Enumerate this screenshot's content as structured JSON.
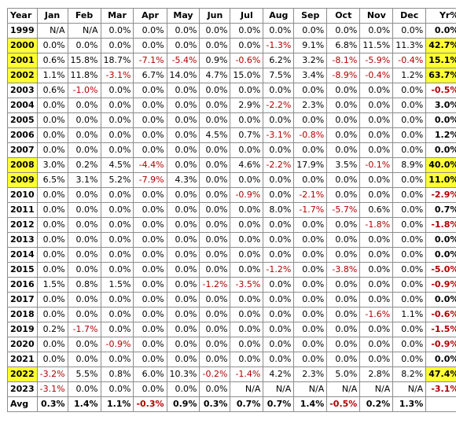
{
  "table": {
    "headers": [
      "Year",
      "Jan",
      "Feb",
      "Mar",
      "Apr",
      "May",
      "Jun",
      "Jul",
      "Aug",
      "Sep",
      "Oct",
      "Nov",
      "Dec",
      "Yr%"
    ],
    "highlight_color": "#ffff33",
    "negative_color": "#b00000",
    "rows": [
      {
        "year": "1999",
        "hl": false,
        "months": [
          "N/A",
          "N/A",
          "0.0%",
          "0.0%",
          "0.0%",
          "0.0%",
          "0.0%",
          "0.0%",
          "0.0%",
          "0.0%",
          "0.0%",
          "0.0%"
        ],
        "yr": "0.0%"
      },
      {
        "year": "2000",
        "hl": true,
        "months": [
          "0.0%",
          "0.0%",
          "0.0%",
          "0.0%",
          "0.0%",
          "0.0%",
          "0.0%",
          "-1.3%",
          "9.1%",
          "6.8%",
          "11.5%",
          "11.3%"
        ],
        "yr": "42.7%"
      },
      {
        "year": "2001",
        "hl": true,
        "months": [
          "0.6%",
          "15.8%",
          "18.7%",
          "-7.1%",
          "-5.4%",
          "0.9%",
          "-0.6%",
          "6.2%",
          "3.2%",
          "-8.1%",
          "-5.9%",
          "-0.4%"
        ],
        "yr": "15.1%"
      },
      {
        "year": "2002",
        "hl": true,
        "months": [
          "1.1%",
          "11.8%",
          "-3.1%",
          "6.7%",
          "14.0%",
          "4.7%",
          "15.0%",
          "7.5%",
          "3.4%",
          "-8.9%",
          "-0.4%",
          "1.2%"
        ],
        "yr": "63.7%"
      },
      {
        "year": "2003",
        "hl": false,
        "months": [
          "0.6%",
          "-1.0%",
          "0.0%",
          "0.0%",
          "0.0%",
          "0.0%",
          "0.0%",
          "0.0%",
          "0.0%",
          "0.0%",
          "0.0%",
          "0.0%"
        ],
        "yr": "-0.5%"
      },
      {
        "year": "2004",
        "hl": false,
        "months": [
          "0.0%",
          "0.0%",
          "0.0%",
          "0.0%",
          "0.0%",
          "0.0%",
          "2.9%",
          "-2.2%",
          "2.3%",
          "0.0%",
          "0.0%",
          "0.0%"
        ],
        "yr": "3.0%"
      },
      {
        "year": "2005",
        "hl": false,
        "months": [
          "0.0%",
          "0.0%",
          "0.0%",
          "0.0%",
          "0.0%",
          "0.0%",
          "0.0%",
          "0.0%",
          "0.0%",
          "0.0%",
          "0.0%",
          "0.0%"
        ],
        "yr": "0.0%"
      },
      {
        "year": "2006",
        "hl": false,
        "months": [
          "0.0%",
          "0.0%",
          "0.0%",
          "0.0%",
          "0.0%",
          "4.5%",
          "0.7%",
          "-3.1%",
          "-0.8%",
          "0.0%",
          "0.0%",
          "0.0%"
        ],
        "yr": "1.2%"
      },
      {
        "year": "2007",
        "hl": false,
        "months": [
          "0.0%",
          "0.0%",
          "0.0%",
          "0.0%",
          "0.0%",
          "0.0%",
          "0.0%",
          "0.0%",
          "0.0%",
          "0.0%",
          "0.0%",
          "0.0%"
        ],
        "yr": "0.0%"
      },
      {
        "year": "2008",
        "hl": true,
        "months": [
          "3.0%",
          "0.2%",
          "4.5%",
          "-4.4%",
          "0.0%",
          "0.0%",
          "4.6%",
          "-2.2%",
          "17.9%",
          "3.5%",
          "-0.1%",
          "8.9%"
        ],
        "yr": "40.0%"
      },
      {
        "year": "2009",
        "hl": true,
        "months": [
          "6.5%",
          "3.1%",
          "5.2%",
          "-7.9%",
          "4.3%",
          "0.0%",
          "0.0%",
          "0.0%",
          "0.0%",
          "0.0%",
          "0.0%",
          "0.0%"
        ],
        "yr": "11.0%"
      },
      {
        "year": "2010",
        "hl": false,
        "months": [
          "0.0%",
          "0.0%",
          "0.0%",
          "0.0%",
          "0.0%",
          "0.0%",
          "-0.9%",
          "0.0%",
          "-2.1%",
          "0.0%",
          "0.0%",
          "0.0%"
        ],
        "yr": "-2.9%"
      },
      {
        "year": "2011",
        "hl": false,
        "months": [
          "0.0%",
          "0.0%",
          "0.0%",
          "0.0%",
          "0.0%",
          "0.0%",
          "0.0%",
          "8.0%",
          "-1.7%",
          "-5.7%",
          "0.6%",
          "0.0%"
        ],
        "yr": "0.7%"
      },
      {
        "year": "2012",
        "hl": false,
        "months": [
          "0.0%",
          "0.0%",
          "0.0%",
          "0.0%",
          "0.0%",
          "0.0%",
          "0.0%",
          "0.0%",
          "0.0%",
          "0.0%",
          "-1.8%",
          "0.0%"
        ],
        "yr": "-1.8%"
      },
      {
        "year": "2013",
        "hl": false,
        "months": [
          "0.0%",
          "0.0%",
          "0.0%",
          "0.0%",
          "0.0%",
          "0.0%",
          "0.0%",
          "0.0%",
          "0.0%",
          "0.0%",
          "0.0%",
          "0.0%"
        ],
        "yr": "0.0%"
      },
      {
        "year": "2014",
        "hl": false,
        "months": [
          "0.0%",
          "0.0%",
          "0.0%",
          "0.0%",
          "0.0%",
          "0.0%",
          "0.0%",
          "0.0%",
          "0.0%",
          "0.0%",
          "0.0%",
          "0.0%"
        ],
        "yr": "0.0%"
      },
      {
        "year": "2015",
        "hl": false,
        "months": [
          "0.0%",
          "0.0%",
          "0.0%",
          "0.0%",
          "0.0%",
          "0.0%",
          "0.0%",
          "-1.2%",
          "0.0%",
          "-3.8%",
          "0.0%",
          "0.0%"
        ],
        "yr": "-5.0%"
      },
      {
        "year": "2016",
        "hl": false,
        "months": [
          "1.5%",
          "0.8%",
          "1.5%",
          "0.0%",
          "0.0%",
          "-1.2%",
          "-3.5%",
          "0.0%",
          "0.0%",
          "0.0%",
          "0.0%",
          "0.0%"
        ],
        "yr": "-0.9%"
      },
      {
        "year": "2017",
        "hl": false,
        "months": [
          "0.0%",
          "0.0%",
          "0.0%",
          "0.0%",
          "0.0%",
          "0.0%",
          "0.0%",
          "0.0%",
          "0.0%",
          "0.0%",
          "0.0%",
          "0.0%"
        ],
        "yr": "0.0%"
      },
      {
        "year": "2018",
        "hl": false,
        "months": [
          "0.0%",
          "0.0%",
          "0.0%",
          "0.0%",
          "0.0%",
          "0.0%",
          "0.0%",
          "0.0%",
          "0.0%",
          "0.0%",
          "-1.6%",
          "1.1%"
        ],
        "yr": "-0.6%"
      },
      {
        "year": "2019",
        "hl": false,
        "months": [
          "0.2%",
          "-1.7%",
          "0.0%",
          "0.0%",
          "0.0%",
          "0.0%",
          "0.0%",
          "0.0%",
          "0.0%",
          "0.0%",
          "0.0%",
          "0.0%"
        ],
        "yr": "-1.5%"
      },
      {
        "year": "2020",
        "hl": false,
        "months": [
          "0.0%",
          "0.0%",
          "-0.9%",
          "0.0%",
          "0.0%",
          "0.0%",
          "0.0%",
          "0.0%",
          "0.0%",
          "0.0%",
          "0.0%",
          "0.0%"
        ],
        "yr": "-0.9%"
      },
      {
        "year": "2021",
        "hl": false,
        "months": [
          "0.0%",
          "0.0%",
          "0.0%",
          "0.0%",
          "0.0%",
          "0.0%",
          "0.0%",
          "0.0%",
          "0.0%",
          "0.0%",
          "0.0%",
          "0.0%"
        ],
        "yr": "0.0%"
      },
      {
        "year": "2022",
        "hl": true,
        "months": [
          "-3.2%",
          "5.5%",
          "0.8%",
          "6.0%",
          "10.3%",
          "-0.2%",
          "-1.4%",
          "4.2%",
          "2.3%",
          "5.0%",
          "2.8%",
          "8.2%"
        ],
        "yr": "47.4%"
      },
      {
        "year": "2023",
        "hl": false,
        "months": [
          "-3.1%",
          "0.0%",
          "0.0%",
          "0.0%",
          "0.0%",
          "0.0%",
          "N/A",
          "N/A",
          "N/A",
          "N/A",
          "N/A",
          "N/A"
        ],
        "yr": "-3.1%"
      }
    ],
    "avg": {
      "label": "Avg",
      "months": [
        "0.3%",
        "1.4%",
        "1.1%",
        "-0.3%",
        "0.9%",
        "0.3%",
        "0.7%",
        "0.7%",
        "1.4%",
        "-0.5%",
        "0.2%",
        "1.3%"
      ],
      "yr": ""
    }
  }
}
